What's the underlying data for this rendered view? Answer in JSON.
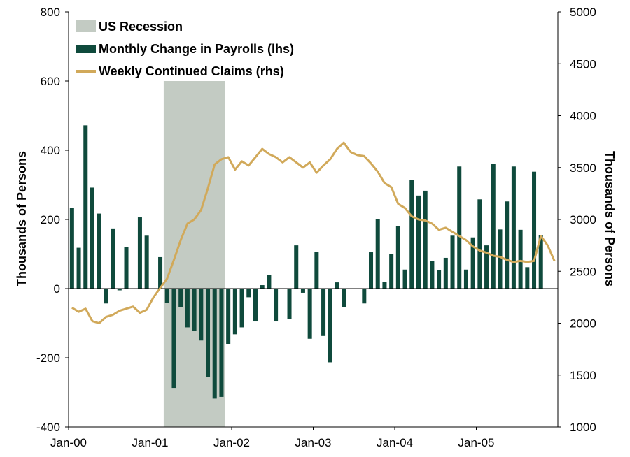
{
  "chart_data": {
    "type": "bar+line",
    "title": "",
    "legend": {
      "placement": "top-left",
      "entries": [
        {
          "label": "US Recession",
          "kind": "band",
          "color": "#c3cbc3"
        },
        {
          "label": "Monthly Change in Payrolls (lhs)",
          "kind": "bar",
          "color": "#0f4a3c"
        },
        {
          "label": "Weekly Continued Claims (rhs)",
          "kind": "line",
          "color": "#d1a95a"
        }
      ]
    },
    "x_axis": {
      "ticks": [
        "Jan-00",
        "Jan-01",
        "Jan-02",
        "Jan-03",
        "Jan-04",
        "Jan-05"
      ],
      "start": "2000-01",
      "end": "2005-12"
    },
    "y_left": {
      "label": "Thousands of Persons",
      "ticks": [
        "800",
        "600",
        "400",
        "200",
        "0",
        "-200",
        "-400"
      ],
      "range": [
        -400,
        800
      ]
    },
    "y_right": {
      "label": "Thousands of Persons",
      "ticks": [
        "5000",
        "4500",
        "4000",
        "3500",
        "3000",
        "2500",
        "2000",
        "1500",
        "1000"
      ],
      "range": [
        1000,
        5000
      ]
    },
    "recession": {
      "start": "2001-03",
      "end": "2001-11"
    },
    "series": [
      {
        "name": "Monthly Change in Payrolls (lhs)",
        "type": "bar",
        "color": "#0f4a3c",
        "months": [
          "2000-01",
          "2000-02",
          "2000-03",
          "2000-04",
          "2000-05",
          "2000-06",
          "2000-07",
          "2000-08",
          "2000-09",
          "2000-10",
          "2000-11",
          "2000-12",
          "2001-01",
          "2001-02",
          "2001-03",
          "2001-04",
          "2001-05",
          "2001-06",
          "2001-07",
          "2001-08",
          "2001-09",
          "2001-10",
          "2001-11",
          "2001-12",
          "2002-01",
          "2002-02",
          "2002-03",
          "2002-04",
          "2002-05",
          "2002-06",
          "2002-07",
          "2002-08",
          "2002-09",
          "2002-10",
          "2002-11",
          "2002-12",
          "2003-01",
          "2003-02",
          "2003-03",
          "2003-04",
          "2003-05",
          "2003-06",
          "2003-07",
          "2003-08",
          "2003-09",
          "2003-10",
          "2003-11",
          "2003-12",
          "2004-01",
          "2004-02",
          "2004-03",
          "2004-04",
          "2004-05",
          "2004-06",
          "2004-07",
          "2004-08",
          "2004-09",
          "2004-10",
          "2004-11",
          "2004-12",
          "2005-01",
          "2005-02",
          "2005-03",
          "2005-04",
          "2005-05",
          "2005-06",
          "2005-07",
          "2005-08",
          "2005-09",
          "2005-10",
          "2005-11",
          "2005-12"
        ],
        "values": [
          233,
          118,
          472,
          292,
          217,
          -43,
          174,
          -5,
          121,
          -2,
          206,
          153,
          0,
          91,
          -42,
          -287,
          -54,
          -112,
          -122,
          -150,
          -256,
          -318,
          -313,
          -160,
          -132,
          -112,
          -25,
          -95,
          10,
          40,
          -95,
          0,
          -88,
          125,
          -12,
          -145,
          107,
          -137,
          -213,
          18,
          -54,
          0,
          0,
          -43,
          105,
          200,
          20,
          100,
          180,
          55,
          315,
          269,
          283,
          80,
          53,
          89,
          153,
          353,
          55,
          148,
          258,
          125,
          361,
          171,
          252,
          353,
          170,
          62,
          338,
          155,
          0,
          0
        ]
      },
      {
        "name": "Weekly Continued Claims (rhs)",
        "type": "line",
        "color": "#d1a95a",
        "points": [
          [
            "2000-01",
            2150
          ],
          [
            "2000-02",
            2110
          ],
          [
            "2000-03",
            2140
          ],
          [
            "2000-04",
            2020
          ],
          [
            "2000-05",
            2000
          ],
          [
            "2000-06",
            2060
          ],
          [
            "2000-07",
            2080
          ],
          [
            "2000-08",
            2120
          ],
          [
            "2000-09",
            2140
          ],
          [
            "2000-10",
            2160
          ],
          [
            "2000-11",
            2100
          ],
          [
            "2000-12",
            2130
          ],
          [
            "2001-01",
            2250
          ],
          [
            "2001-02",
            2340
          ],
          [
            "2001-03",
            2430
          ],
          [
            "2001-04",
            2610
          ],
          [
            "2001-05",
            2800
          ],
          [
            "2001-06",
            2960
          ],
          [
            "2001-07",
            3000
          ],
          [
            "2001-08",
            3090
          ],
          [
            "2001-09",
            3300
          ],
          [
            "2001-10",
            3530
          ],
          [
            "2001-11",
            3580
          ],
          [
            "2001-12",
            3600
          ],
          [
            "2002-01",
            3480
          ],
          [
            "2002-02",
            3560
          ],
          [
            "2002-03",
            3520
          ],
          [
            "2002-04",
            3600
          ],
          [
            "2002-05",
            3680
          ],
          [
            "2002-06",
            3630
          ],
          [
            "2002-07",
            3600
          ],
          [
            "2002-08",
            3550
          ],
          [
            "2002-09",
            3600
          ],
          [
            "2002-10",
            3550
          ],
          [
            "2002-11",
            3500
          ],
          [
            "2002-12",
            3550
          ],
          [
            "2003-01",
            3450
          ],
          [
            "2003-02",
            3520
          ],
          [
            "2003-03",
            3580
          ],
          [
            "2003-04",
            3680
          ],
          [
            "2003-05",
            3740
          ],
          [
            "2003-06",
            3650
          ],
          [
            "2003-07",
            3620
          ],
          [
            "2003-08",
            3610
          ],
          [
            "2003-09",
            3540
          ],
          [
            "2003-10",
            3460
          ],
          [
            "2003-11",
            3350
          ],
          [
            "2003-12",
            3310
          ],
          [
            "2004-01",
            3150
          ],
          [
            "2004-02",
            3110
          ],
          [
            "2004-03",
            3030
          ],
          [
            "2004-04",
            3000
          ],
          [
            "2004-05",
            2990
          ],
          [
            "2004-06",
            2960
          ],
          [
            "2004-07",
            2900
          ],
          [
            "2004-08",
            2920
          ],
          [
            "2004-09",
            2880
          ],
          [
            "2004-10",
            2840
          ],
          [
            "2004-11",
            2800
          ],
          [
            "2004-12",
            2740
          ],
          [
            "2005-01",
            2700
          ],
          [
            "2005-02",
            2680
          ],
          [
            "2005-03",
            2650
          ],
          [
            "2005-04",
            2640
          ],
          [
            "2005-05",
            2610
          ],
          [
            "2005-06",
            2590
          ],
          [
            "2005-07",
            2600
          ],
          [
            "2005-08",
            2590
          ],
          [
            "2005-09",
            2600
          ],
          [
            "2005-10",
            2840
          ],
          [
            "2005-11",
            2750
          ],
          [
            "2005-12",
            2600
          ]
        ]
      }
    ]
  }
}
